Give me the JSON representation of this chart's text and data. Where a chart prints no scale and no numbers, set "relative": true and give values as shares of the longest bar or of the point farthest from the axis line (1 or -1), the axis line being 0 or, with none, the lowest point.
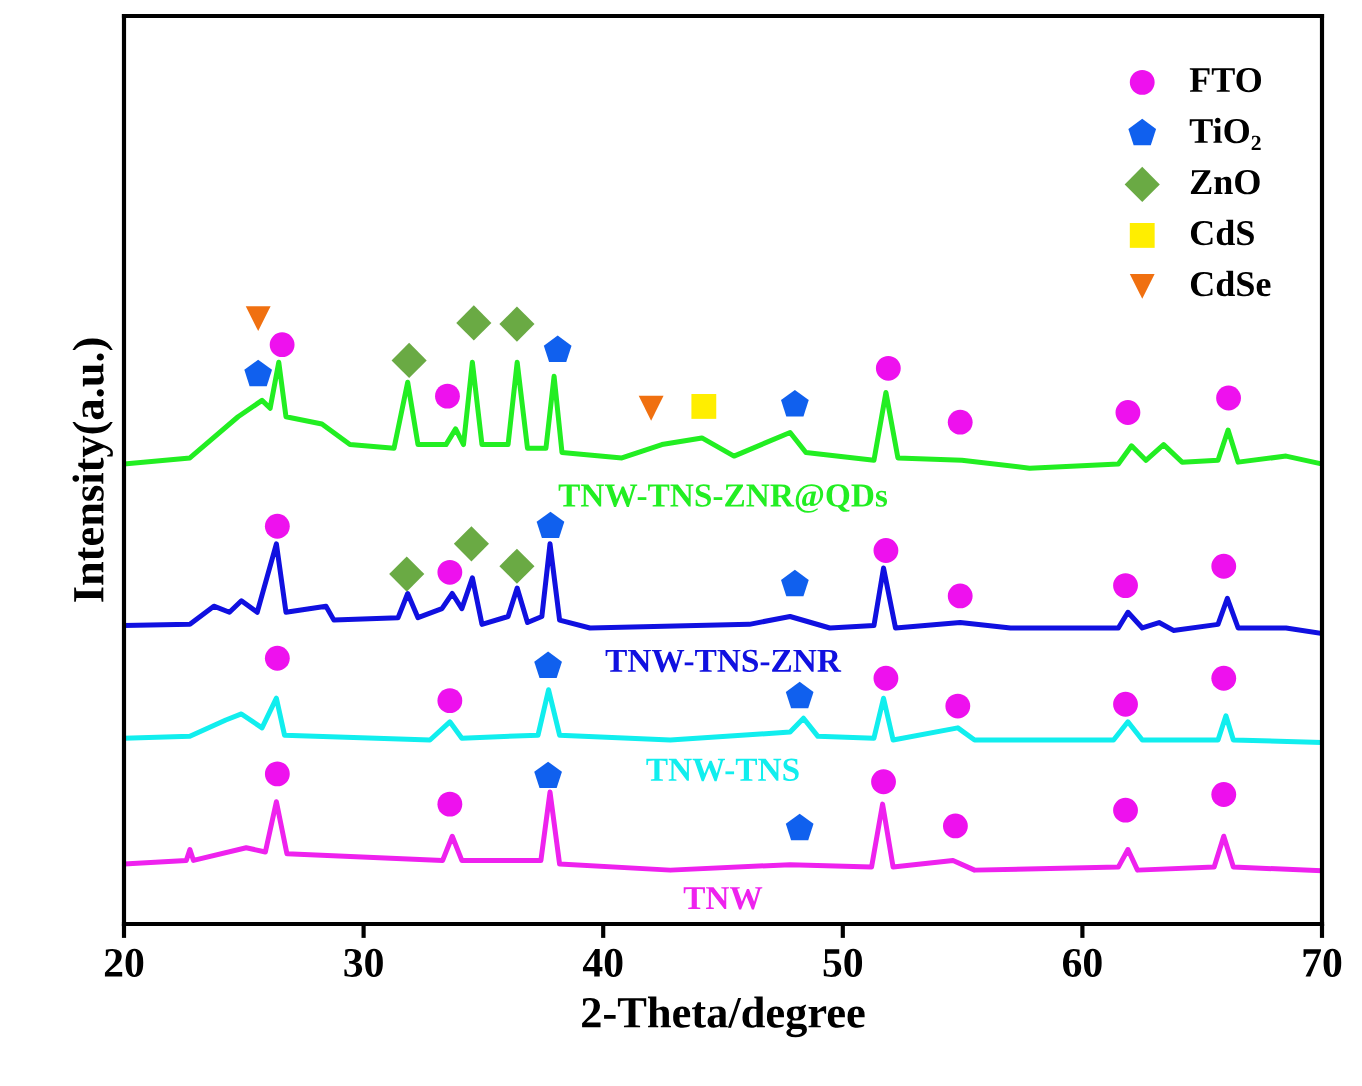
{
  "chart_data": {
    "type": "line",
    "relative": true,
    "xlabel": "2-Theta/degree",
    "ylabel": "Intensity(a.u.)",
    "xlim": [
      20,
      70
    ],
    "xticks": [
      20,
      30,
      40,
      50,
      60,
      70
    ],
    "legend": "top right",
    "grid": false,
    "series": [
      {
        "name": "TNW-TNS-ZNR@QDs",
        "color": "#22ee22",
        "x": [
          20.0,
          22.75,
          24.76,
          25.76,
          26.1,
          26.46,
          26.76,
          28.26,
          29.43,
          31.27,
          31.84,
          32.27,
          33.44,
          33.84,
          34.17,
          34.54,
          34.94,
          36.03,
          36.41,
          36.84,
          37.61,
          37.95,
          38.28,
          40.78,
          42.45,
          44.12,
          45.46,
          47.8,
          48.46,
          51.3,
          51.8,
          52.3,
          54.97,
          57.8,
          61.5,
          62.05,
          62.65,
          63.39,
          64.16,
          65.66,
          66.08,
          66.5,
          68.5,
          70.0
        ],
        "values": [
          0.76,
          0.77,
          0.838,
          0.865,
          0.852,
          0.928,
          0.838,
          0.826,
          0.792,
          0.786,
          0.895,
          0.792,
          0.792,
          0.818,
          0.792,
          0.928,
          0.792,
          0.792,
          0.928,
          0.786,
          0.786,
          0.905,
          0.779,
          0.77,
          0.792,
          0.803,
          0.773,
          0.812,
          0.779,
          0.766,
          0.878,
          0.77,
          0.766,
          0.753,
          0.76,
          0.79,
          0.766,
          0.792,
          0.763,
          0.766,
          0.816,
          0.763,
          0.773,
          0.76
        ]
      },
      {
        "name": "TNW-TNS-ZNR",
        "color": "#1010e0",
        "x": [
          20.0,
          22.75,
          23.75,
          24.4,
          24.9,
          25.56,
          26.36,
          26.76,
          28.43,
          28.76,
          31.44,
          31.84,
          32.27,
          33.27,
          33.7,
          34.1,
          34.54,
          34.94,
          36.03,
          36.41,
          36.84,
          37.44,
          37.78,
          38.18,
          39.45,
          46.1,
          47.8,
          49.46,
          51.3,
          51.7,
          52.2,
          54.9,
          57.0,
          61.5,
          61.9,
          62.5,
          63.2,
          63.8,
          65.66,
          66.05,
          66.5,
          68.5,
          70.0
        ],
        "values": [
          0.493,
          0.495,
          0.525,
          0.515,
          0.534,
          0.515,
          0.628,
          0.515,
          0.525,
          0.502,
          0.506,
          0.546,
          0.506,
          0.521,
          0.546,
          0.521,
          0.572,
          0.495,
          0.508,
          0.555,
          0.498,
          0.508,
          0.628,
          0.502,
          0.489,
          0.495,
          0.508,
          0.489,
          0.493,
          0.588,
          0.489,
          0.498,
          0.489,
          0.489,
          0.515,
          0.489,
          0.498,
          0.485,
          0.495,
          0.538,
          0.489,
          0.489,
          0.48
        ]
      },
      {
        "name": "TNW-TNS",
        "color": "#11eeee",
        "x": [
          20.0,
          22.75,
          24.25,
          24.9,
          25.76,
          26.36,
          26.7,
          32.77,
          33.6,
          34.1,
          37.28,
          37.72,
          38.18,
          42.8,
          47.8,
          48.36,
          48.96,
          51.3,
          51.7,
          52.1,
          54.8,
          55.5,
          61.3,
          61.9,
          62.5,
          65.66,
          65.99,
          66.3,
          70.0
        ],
        "values": [
          0.307,
          0.31,
          0.337,
          0.347,
          0.324,
          0.373,
          0.312,
          0.304,
          0.334,
          0.307,
          0.312,
          0.387,
          0.312,
          0.304,
          0.317,
          0.34,
          0.31,
          0.307,
          0.373,
          0.304,
          0.324,
          0.304,
          0.304,
          0.334,
          0.304,
          0.304,
          0.344,
          0.304,
          0.3
        ]
      },
      {
        "name": "TNW",
        "color": "#ee22ee",
        "x": [
          20.0,
          22.6,
          22.75,
          22.9,
          25.1,
          25.9,
          26.36,
          26.8,
          33.3,
          33.7,
          34.1,
          37.4,
          37.78,
          38.18,
          42.8,
          47.8,
          51.2,
          51.66,
          52.1,
          54.6,
          55.5,
          61.5,
          61.9,
          62.3,
          65.5,
          65.9,
          66.3,
          70.0
        ],
        "values": [
          0.099,
          0.105,
          0.123,
          0.105,
          0.126,
          0.119,
          0.202,
          0.116,
          0.105,
          0.145,
          0.105,
          0.105,
          0.218,
          0.099,
          0.089,
          0.098,
          0.094,
          0.198,
          0.094,
          0.105,
          0.089,
          0.094,
          0.123,
          0.089,
          0.094,
          0.145,
          0.094,
          0.088
        ]
      },
      {
        "name": "FTO",
        "type": "scatter",
        "marker": "circle",
        "color": "#ee11ee",
        "x": [
          26.6,
          33.5,
          51.9,
          54.9,
          61.9,
          66.1,
          26.4,
          33.6,
          51.8,
          54.9,
          61.8,
          65.9,
          26.4,
          33.6,
          51.8,
          54.8,
          61.8,
          65.9,
          26.4,
          33.6,
          51.7,
          54.7,
          61.8,
          65.9
        ],
        "values": [
          0.957,
          0.872,
          0.918,
          0.829,
          0.845,
          0.869,
          0.657,
          0.581,
          0.617,
          0.542,
          0.559,
          0.591,
          0.439,
          0.369,
          0.406,
          0.36,
          0.363,
          0.406,
          0.248,
          0.198,
          0.235,
          0.162,
          0.188,
          0.214
        ]
      },
      {
        "name": "TiO₂",
        "type": "scatter",
        "color": "#1060ee",
        "x": [
          25.6,
          38.1,
          48.0,
          37.8,
          48.0,
          37.7,
          48.2,
          37.7,
          48.2
        ],
        "values": [
          0.908,
          0.948,
          0.858,
          0.657,
          0.561,
          0.426,
          0.376,
          0.244,
          0.158
        ]
      },
      {
        "name": "ZnO",
        "type": "scatter",
        "marker": "diamond",
        "color": "#6aaa44",
        "x": [
          31.9,
          34.6,
          36.4,
          31.8,
          34.5,
          36.4
        ],
        "values": [
          0.931,
          0.993,
          0.991,
          0.578,
          0.628,
          0.591
        ]
      },
      {
        "name": "CdS",
        "type": "scatter",
        "marker": "square",
        "color": "#ffee00",
        "x": [
          44.2
        ],
        "values": [
          0.855
        ]
      },
      {
        "name": "CdSe",
        "type": "scatter",
        "marker": "triangle",
        "color": "#f07010",
        "x": [
          25.6,
          42.0
        ],
        "values": [
          1.0,
          0.852
        ]
      }
    ]
  }
}
